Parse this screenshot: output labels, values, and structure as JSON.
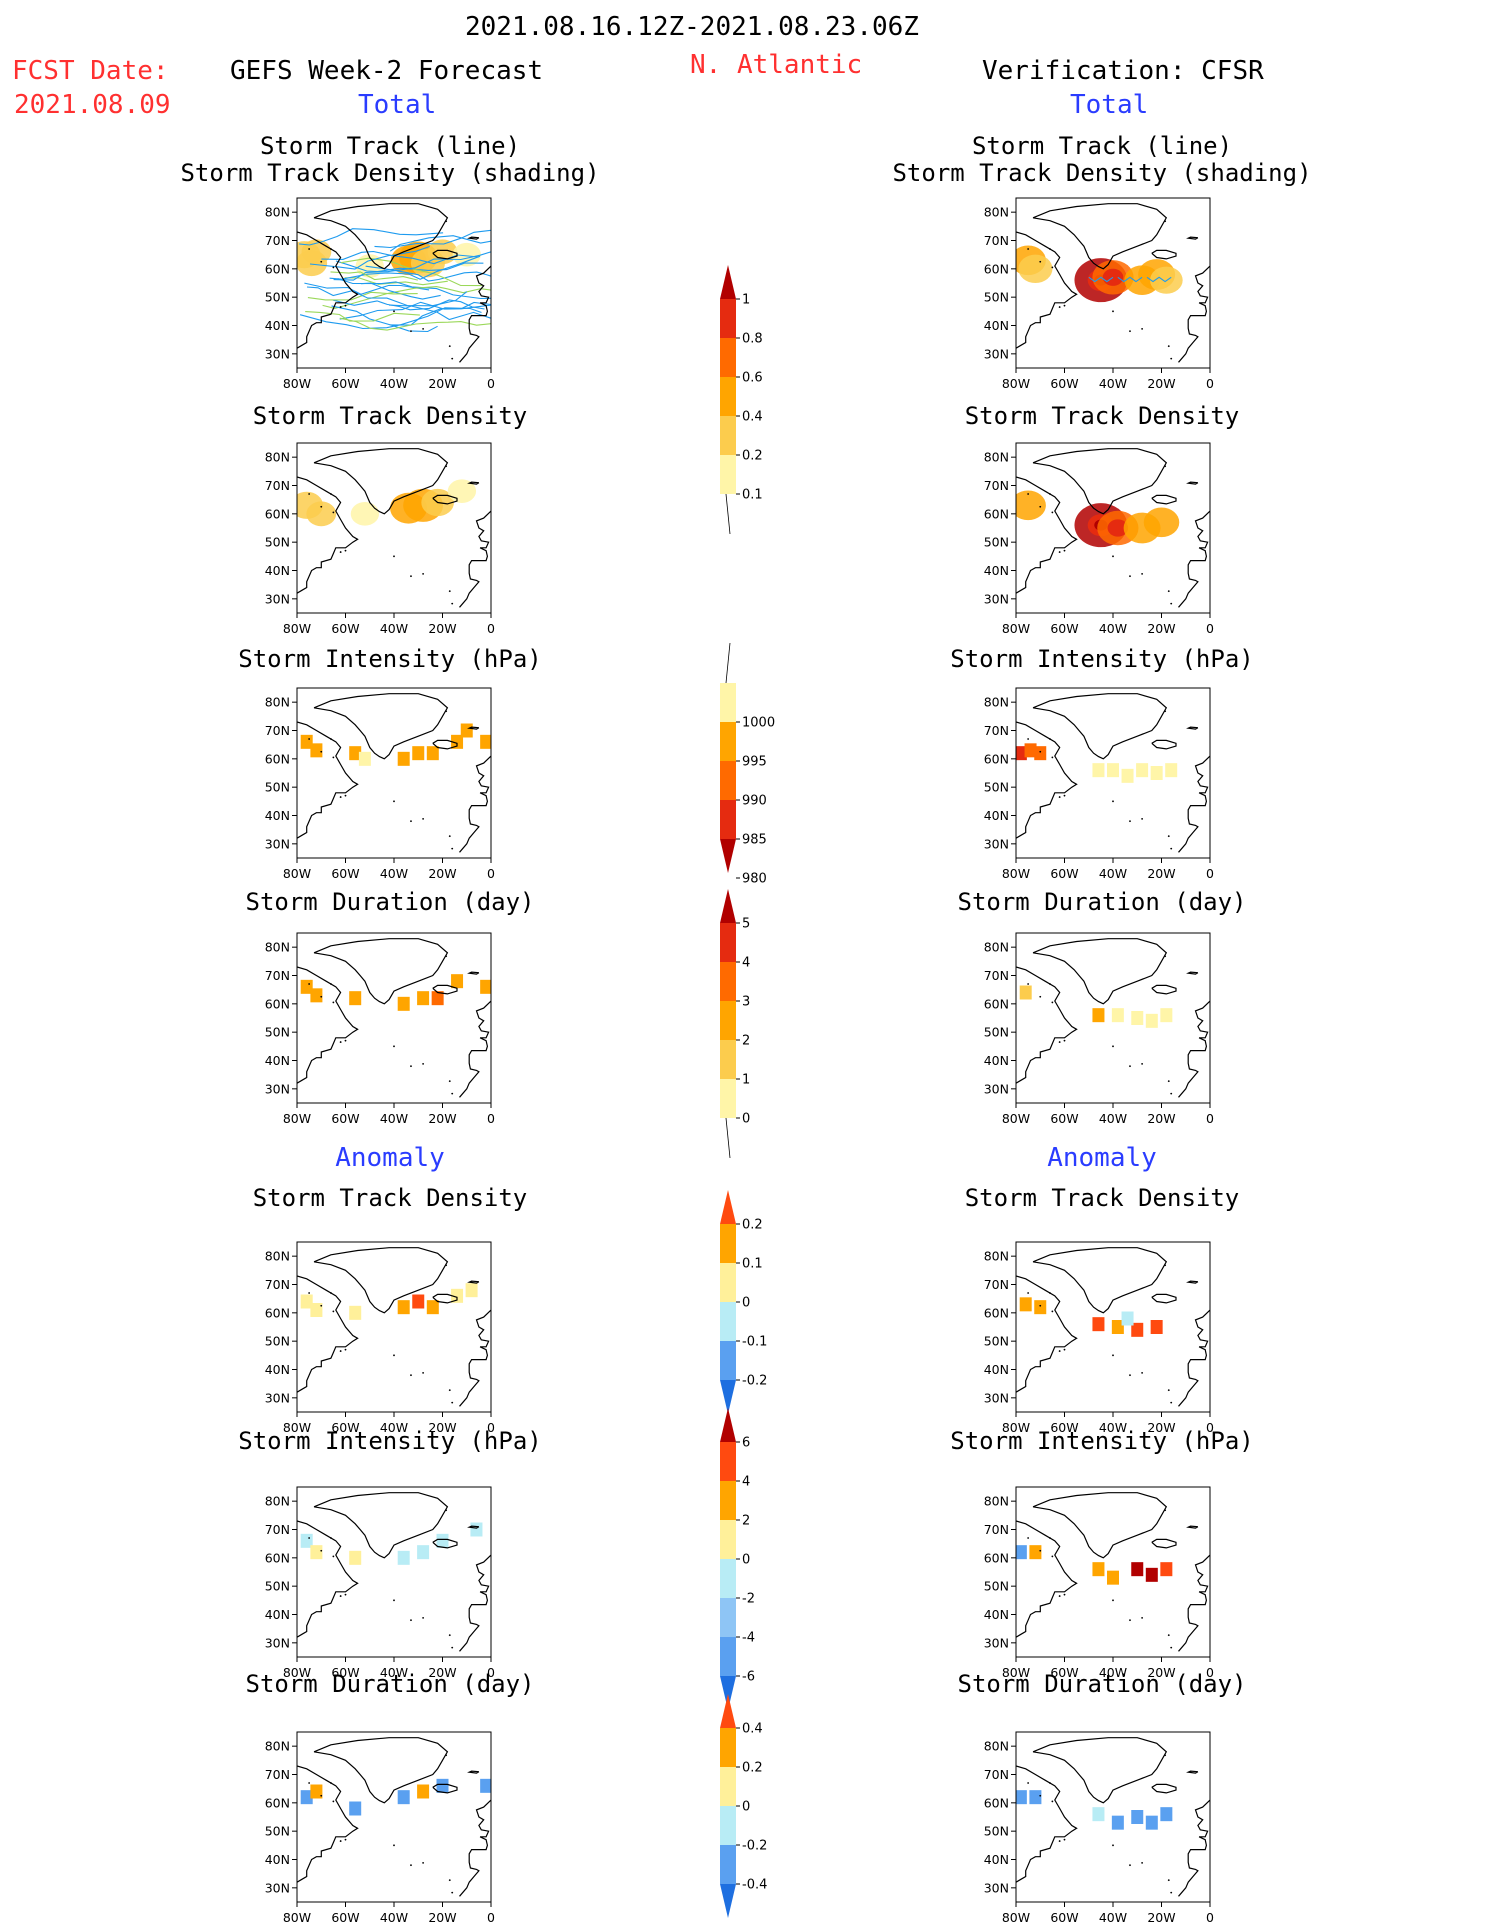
{
  "header": {
    "period": "2021.08.16.12Z-2021.08.23.06Z",
    "fcst_label": "FCST Date:",
    "fcst_date": "2021.08.09",
    "left_title": "GEFS Week-2 Forecast",
    "region": "N. Atlantic",
    "right_title": "Verification: CFSR",
    "total_label": "Total",
    "anomaly_label": "Anomaly"
  },
  "panel_titles": {
    "track": "Storm Track (line)\nStorm Track Density (shading)",
    "density": "Storm Track Density",
    "intensity": "Storm Intensity (hPa)",
    "duration": "Storm Duration (day)"
  },
  "colors": {
    "title_red": "#ff3030",
    "label_blue": "#2a3cff",
    "track_line": "#1e9bef",
    "track_line2": "#9bd85a"
  },
  "chart_data": [
    {
      "type": "heatmap",
      "id": "fcst-total-track",
      "column": "GEFS Week-2 Forecast",
      "section": "Total",
      "title": "Storm Track (line)\nStorm Track Density (shading)",
      "x_ticks": [
        "80W",
        "60W",
        "40W",
        "20W",
        "0"
      ],
      "y_ticks": [
        "80N",
        "70N",
        "60N",
        "50N",
        "40N",
        "30N"
      ],
      "xlim": [
        -80,
        0
      ],
      "ylim": [
        25,
        85
      ],
      "cells": [
        {
          "lon": -77,
          "lat": 65,
          "v": 0.3
        },
        {
          "lon": -74,
          "lat": 62,
          "v": 0.25
        },
        {
          "lon": -72,
          "lat": 66,
          "v": 0.2
        },
        {
          "lon": -50,
          "lat": 61,
          "v": 0.15
        },
        {
          "lon": -34,
          "lat": 63,
          "v": 0.4
        },
        {
          "lon": -30,
          "lat": 64,
          "v": 0.5
        },
        {
          "lon": -26,
          "lat": 62,
          "v": 0.35
        },
        {
          "lon": -20,
          "lat": 66,
          "v": 0.2
        },
        {
          "lon": -10,
          "lat": 65,
          "v": 0.15
        }
      ],
      "tracks": true
    },
    {
      "type": "heatmap",
      "id": "cfsr-total-track",
      "column": "Verification: CFSR",
      "section": "Total",
      "title": "Storm Track (line)\nStorm Track Density (shading)",
      "x_ticks": [
        "80W",
        "60W",
        "40W",
        "20W",
        "0"
      ],
      "y_ticks": [
        "80N",
        "70N",
        "60N",
        "50N",
        "40N",
        "30N"
      ],
      "xlim": [
        -80,
        0
      ],
      "ylim": [
        25,
        85
      ],
      "cells": [
        {
          "lon": -75,
          "lat": 63,
          "v": 0.4
        },
        {
          "lon": -72,
          "lat": 60,
          "v": 0.35
        },
        {
          "lon": -45,
          "lat": 56,
          "v": 1.0
        },
        {
          "lon": -40,
          "lat": 57,
          "v": 0.6
        },
        {
          "lon": -28,
          "lat": 56,
          "v": 0.4
        },
        {
          "lon": -22,
          "lat": 58,
          "v": 0.45
        },
        {
          "lon": -18,
          "lat": 56,
          "v": 0.3
        }
      ],
      "tracks": true
    },
    {
      "type": "heatmap",
      "id": "fcst-total-density",
      "column": "GEFS Week-2 Forecast",
      "section": "Total",
      "title": "Storm Track Density",
      "x_ticks": [
        "80W",
        "60W",
        "40W",
        "20W",
        "0"
      ],
      "y_ticks": [
        "80N",
        "70N",
        "60N",
        "50N",
        "40N",
        "30N"
      ],
      "xlim": [
        -80,
        0
      ],
      "ylim": [
        25,
        85
      ],
      "cells": [
        {
          "lon": -76,
          "lat": 63,
          "v": 0.3
        },
        {
          "lon": -70,
          "lat": 60,
          "v": 0.2
        },
        {
          "lon": -52,
          "lat": 60,
          "v": 0.15
        },
        {
          "lon": -34,
          "lat": 62,
          "v": 0.45
        },
        {
          "lon": -28,
          "lat": 63,
          "v": 0.55
        },
        {
          "lon": -22,
          "lat": 64,
          "v": 0.3
        },
        {
          "lon": -12,
          "lat": 68,
          "v": 0.15
        }
      ]
    },
    {
      "type": "heatmap",
      "id": "cfsr-total-density",
      "column": "Verification: CFSR",
      "section": "Total",
      "title": "Storm Track Density",
      "x_ticks": [
        "80W",
        "60W",
        "40W",
        "20W",
        "0"
      ],
      "y_ticks": [
        "80N",
        "70N",
        "60N",
        "50N",
        "40N",
        "30N"
      ],
      "xlim": [
        -80,
        0
      ],
      "ylim": [
        25,
        85
      ],
      "cells": [
        {
          "lon": -75,
          "lat": 63,
          "v": 0.4
        },
        {
          "lon": -45,
          "lat": 56,
          "v": 1.0
        },
        {
          "lon": -38,
          "lat": 55,
          "v": 0.6
        },
        {
          "lon": -28,
          "lat": 55,
          "v": 0.45
        },
        {
          "lon": -20,
          "lat": 57,
          "v": 0.4
        }
      ]
    },
    {
      "type": "heatmap",
      "id": "fcst-total-intensity",
      "column": "GEFS Week-2 Forecast",
      "section": "Total",
      "title": "Storm Intensity (hPa)",
      "x_ticks": [
        "80W",
        "60W",
        "40W",
        "20W",
        "0"
      ],
      "y_ticks": [
        "80N",
        "70N",
        "60N",
        "50N",
        "40N",
        "30N"
      ],
      "xlim": [
        -80,
        0
      ],
      "ylim": [
        25,
        85
      ],
      "cells": [
        {
          "lon": -76,
          "lat": 66,
          "v": 993
        },
        {
          "lon": -72,
          "lat": 63,
          "v": 992
        },
        {
          "lon": -56,
          "lat": 62,
          "v": 994
        },
        {
          "lon": -52,
          "lat": 60,
          "v": 998
        },
        {
          "lon": -36,
          "lat": 60,
          "v": 994
        },
        {
          "lon": -30,
          "lat": 62,
          "v": 993
        },
        {
          "lon": -24,
          "lat": 62,
          "v": 994
        },
        {
          "lon": -14,
          "lat": 66,
          "v": 994
        },
        {
          "lon": -10,
          "lat": 70,
          "v": 994
        },
        {
          "lon": -2,
          "lat": 66,
          "v": 994
        }
      ]
    },
    {
      "type": "heatmap",
      "id": "cfsr-total-intensity",
      "column": "Verification: CFSR",
      "section": "Total",
      "title": "Storm Intensity (hPa)",
      "x_ticks": [
        "80W",
        "60W",
        "40W",
        "20W",
        "0"
      ],
      "y_ticks": [
        "80N",
        "70N",
        "60N",
        "50N",
        "40N",
        "30N"
      ],
      "xlim": [
        -80,
        0
      ],
      "ylim": [
        25,
        85
      ],
      "cells": [
        {
          "lon": -78,
          "lat": 62,
          "v": 981
        },
        {
          "lon": -74,
          "lat": 63,
          "v": 986
        },
        {
          "lon": -70,
          "lat": 62,
          "v": 989
        },
        {
          "lon": -46,
          "lat": 56,
          "v": 998
        },
        {
          "lon": -40,
          "lat": 56,
          "v": 999
        },
        {
          "lon": -34,
          "lat": 54,
          "v": 998
        },
        {
          "lon": -28,
          "lat": 56,
          "v": 998
        },
        {
          "lon": -22,
          "lat": 55,
          "v": 999
        },
        {
          "lon": -16,
          "lat": 56,
          "v": 998
        }
      ]
    },
    {
      "type": "heatmap",
      "id": "fcst-total-duration",
      "column": "GEFS Week-2 Forecast",
      "section": "Total",
      "title": "Storm Duration (day)",
      "x_ticks": [
        "80W",
        "60W",
        "40W",
        "20W",
        "0"
      ],
      "y_ticks": [
        "80N",
        "70N",
        "60N",
        "50N",
        "40N",
        "30N"
      ],
      "xlim": [
        -80,
        0
      ],
      "ylim": [
        25,
        85
      ],
      "cells": [
        {
          "lon": -76,
          "lat": 66,
          "v": 2.4
        },
        {
          "lon": -72,
          "lat": 63,
          "v": 2.2
        },
        {
          "lon": -56,
          "lat": 62,
          "v": 2.5
        },
        {
          "lon": -36,
          "lat": 60,
          "v": 2.4
        },
        {
          "lon": -28,
          "lat": 62,
          "v": 2.6
        },
        {
          "lon": -22,
          "lat": 62,
          "v": 3.2
        },
        {
          "lon": -14,
          "lat": 68,
          "v": 2.4
        },
        {
          "lon": -2,
          "lat": 66,
          "v": 2.2
        }
      ]
    },
    {
      "type": "heatmap",
      "id": "cfsr-total-duration",
      "column": "Verification: CFSR",
      "section": "Total",
      "title": "Storm Duration (day)",
      "x_ticks": [
        "80W",
        "60W",
        "40W",
        "20W",
        "0"
      ],
      "y_ticks": [
        "80N",
        "70N",
        "60N",
        "50N",
        "40N",
        "30N"
      ],
      "xlim": [
        -80,
        0
      ],
      "ylim": [
        25,
        85
      ],
      "cells": [
        {
          "lon": -76,
          "lat": 64,
          "v": 1.5
        },
        {
          "lon": -46,
          "lat": 56,
          "v": 2.5
        },
        {
          "lon": -38,
          "lat": 56,
          "v": 0.5
        },
        {
          "lon": -30,
          "lat": 55,
          "v": 0.5
        },
        {
          "lon": -24,
          "lat": 54,
          "v": 0.5
        },
        {
          "lon": -18,
          "lat": 56,
          "v": 0.5
        }
      ]
    },
    {
      "type": "heatmap",
      "id": "fcst-anom-density",
      "column": "GEFS Week-2 Forecast",
      "section": "Anomaly",
      "title": "Storm Track Density",
      "x_ticks": [
        "80W",
        "60W",
        "40W",
        "20W",
        "0"
      ],
      "y_ticks": [
        "80N",
        "70N",
        "60N",
        "50N",
        "40N",
        "30N"
      ],
      "xlim": [
        -80,
        0
      ],
      "ylim": [
        25,
        85
      ],
      "cells": [
        {
          "lon": -76,
          "lat": 64,
          "v": 0.05
        },
        {
          "lon": -72,
          "lat": 61,
          "v": 0.04
        },
        {
          "lon": -56,
          "lat": 60,
          "v": 0.06
        },
        {
          "lon": -36,
          "lat": 62,
          "v": 0.12
        },
        {
          "lon": -30,
          "lat": 64,
          "v": 0.2
        },
        {
          "lon": -24,
          "lat": 62,
          "v": 0.15
        },
        {
          "lon": -14,
          "lat": 66,
          "v": 0.08
        },
        {
          "lon": -8,
          "lat": 68,
          "v": 0.05
        }
      ]
    },
    {
      "type": "heatmap",
      "id": "cfsr-anom-density",
      "column": "Verification: CFSR",
      "section": "Anomaly",
      "title": "Storm Track Density",
      "x_ticks": [
        "80W",
        "60W",
        "40W",
        "20W",
        "0"
      ],
      "y_ticks": [
        "80N",
        "70N",
        "60N",
        "50N",
        "40N",
        "30N"
      ],
      "xlim": [
        -80,
        0
      ],
      "ylim": [
        25,
        85
      ],
      "cells": [
        {
          "lon": -76,
          "lat": 63,
          "v": 0.12
        },
        {
          "lon": -70,
          "lat": 62,
          "v": 0.15
        },
        {
          "lon": -46,
          "lat": 56,
          "v": 0.22
        },
        {
          "lon": -38,
          "lat": 55,
          "v": 0.18
        },
        {
          "lon": -30,
          "lat": 54,
          "v": 0.2
        },
        {
          "lon": -22,
          "lat": 55,
          "v": 0.2
        },
        {
          "lon": -34,
          "lat": 58,
          "v": -0.03
        }
      ]
    },
    {
      "type": "heatmap",
      "id": "fcst-anom-intensity",
      "column": "GEFS Week-2 Forecast",
      "section": "Anomaly",
      "title": "Storm Intensity (hPa)",
      "x_ticks": [
        "80W",
        "60W",
        "40W",
        "20W",
        "0"
      ],
      "y_ticks": [
        "80N",
        "70N",
        "60N",
        "50N",
        "40N",
        "30N"
      ],
      "xlim": [
        -80,
        0
      ],
      "ylim": [
        25,
        85
      ],
      "cells": [
        {
          "lon": -76,
          "lat": 66,
          "v": -1.0
        },
        {
          "lon": -72,
          "lat": 62,
          "v": 1.0
        },
        {
          "lon": -56,
          "lat": 60,
          "v": 1.0
        },
        {
          "lon": -36,
          "lat": 60,
          "v": -1.0
        },
        {
          "lon": -28,
          "lat": 62,
          "v": -1.0
        },
        {
          "lon": -20,
          "lat": 66,
          "v": -1.0
        },
        {
          "lon": -6,
          "lat": 70,
          "v": -1.0
        }
      ]
    },
    {
      "type": "heatmap",
      "id": "cfsr-anom-intensity",
      "column": "Verification: CFSR",
      "section": "Anomaly",
      "title": "Storm Intensity (hPa)",
      "x_ticks": [
        "80W",
        "60W",
        "40W",
        "20W",
        "0"
      ],
      "y_ticks": [
        "80N",
        "70N",
        "60N",
        "50N",
        "40N",
        "30N"
      ],
      "xlim": [
        -80,
        0
      ],
      "ylim": [
        25,
        85
      ],
      "cells": [
        {
          "lon": -78,
          "lat": 62,
          "v": -5.0
        },
        {
          "lon": -72,
          "lat": 62,
          "v": 3.0
        },
        {
          "lon": -46,
          "lat": 56,
          "v": 3.0
        },
        {
          "lon": -40,
          "lat": 53,
          "v": 3.0
        },
        {
          "lon": -30,
          "lat": 56,
          "v": 7.0
        },
        {
          "lon": -24,
          "lat": 54,
          "v": 7.0
        },
        {
          "lon": -18,
          "lat": 56,
          "v": 5.0
        }
      ]
    },
    {
      "type": "heatmap",
      "id": "fcst-anom-duration",
      "column": "GEFS Week-2 Forecast",
      "section": "Anomaly",
      "title": "Storm Duration (day)",
      "x_ticks": [
        "80W",
        "60W",
        "40W",
        "20W",
        "0"
      ],
      "y_ticks": [
        "80N",
        "70N",
        "60N",
        "50N",
        "40N",
        "30N"
      ],
      "xlim": [
        -80,
        0
      ],
      "ylim": [
        25,
        85
      ],
      "cells": [
        {
          "lon": -76,
          "lat": 62,
          "v": -0.3
        },
        {
          "lon": -72,
          "lat": 64,
          "v": 0.2
        },
        {
          "lon": -56,
          "lat": 58,
          "v": -0.3
        },
        {
          "lon": -36,
          "lat": 62,
          "v": -0.3
        },
        {
          "lon": -28,
          "lat": 64,
          "v": 0.3
        },
        {
          "lon": -20,
          "lat": 66,
          "v": -0.3
        },
        {
          "lon": -2,
          "lat": 66,
          "v": -0.3
        }
      ]
    },
    {
      "type": "heatmap",
      "id": "cfsr-anom-duration",
      "column": "Verification: CFSR",
      "section": "Anomaly",
      "title": "Storm Duration (day)",
      "x_ticks": [
        "80W",
        "60W",
        "40W",
        "20W",
        "0"
      ],
      "y_ticks": [
        "80N",
        "70N",
        "60N",
        "50N",
        "40N",
        "30N"
      ],
      "xlim": [
        -80,
        0
      ],
      "ylim": [
        25,
        85
      ],
      "cells": [
        {
          "lon": -78,
          "lat": 62,
          "v": -0.4
        },
        {
          "lon": -72,
          "lat": 62,
          "v": -0.4
        },
        {
          "lon": -46,
          "lat": 56,
          "v": -0.05
        },
        {
          "lon": -38,
          "lat": 53,
          "v": -0.4
        },
        {
          "lon": -30,
          "lat": 55,
          "v": -0.3
        },
        {
          "lon": -24,
          "lat": 53,
          "v": -0.4
        },
        {
          "lon": -18,
          "lat": 56,
          "v": -0.3
        }
      ]
    }
  ],
  "colorbars": [
    {
      "id": "density-total",
      "labels": [
        "1",
        "0.8",
        "0.6",
        "0.4",
        "0.2",
        "0.1"
      ],
      "colors": [
        "#b10000",
        "#e52b10",
        "#ff6a00",
        "#ffa500",
        "#fccc4d",
        "#fff5a8"
      ],
      "top_arrow": true,
      "bottom_arrow": false
    },
    {
      "id": "intensity-total",
      "labels": [
        "1000",
        "995",
        "990",
        "985",
        "980"
      ],
      "colors": [
        "#fff5a8",
        "#ffa500",
        "#ff6a00",
        "#e52b10",
        "#b10000"
      ],
      "top_arrow": false,
      "bottom_arrow": true
    },
    {
      "id": "duration-total",
      "labels": [
        "5",
        "4",
        "3",
        "2",
        "1",
        "0"
      ],
      "colors": [
        "#b10000",
        "#e52b10",
        "#ff6a00",
        "#ffa500",
        "#fccc4d",
        "#fff5a8"
      ],
      "top_arrow": true,
      "bottom_arrow": false
    },
    {
      "id": "density-anom",
      "labels": [
        "0.2",
        "0.1",
        "0",
        "-0.1",
        "-0.2"
      ],
      "colors": [
        "#ff4a10",
        "#ffa500",
        "#fff09a",
        "#b8ecf5",
        "#5aa0f0",
        "#1e6fe0"
      ],
      "top_arrow": true,
      "bottom_arrow": true
    },
    {
      "id": "intensity-anom",
      "labels": [
        "6",
        "4",
        "2",
        "0",
        "-2",
        "-4",
        "-6"
      ],
      "colors": [
        "#b10000",
        "#ff4a10",
        "#ffa500",
        "#fff09a",
        "#b8ecf5",
        "#8ec5f5",
        "#5aa0f0",
        "#1e6fe0"
      ],
      "top_arrow": true,
      "bottom_arrow": true
    },
    {
      "id": "duration-anom",
      "labels": [
        "0.4",
        "0.2",
        "0",
        "-0.2",
        "-0.4"
      ],
      "colors": [
        "#ff4a10",
        "#ffa500",
        "#fff09a",
        "#b8ecf5",
        "#5aa0f0",
        "#1e6fe0"
      ],
      "top_arrow": true,
      "bottom_arrow": true
    }
  ]
}
